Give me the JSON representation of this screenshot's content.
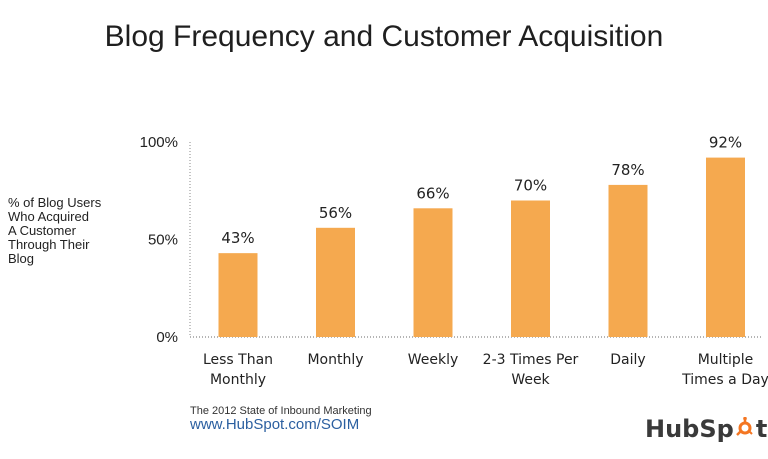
{
  "header": {
    "title": "Blog Frequency and Customer Acquisition"
  },
  "y_axis_label_lines": [
    "% of Blog Users",
    "Who Acquired",
    "A Customer",
    "Through Their",
    "Blog"
  ],
  "chart_data": {
    "type": "bar",
    "title": "Blog Frequency and Customer Acquisition",
    "ylabel": "% of Blog Users Who Acquired A Customer Through Their Blog",
    "xlabel": "",
    "ylim": [
      0,
      100
    ],
    "yticks": [
      0,
      50,
      100
    ],
    "ytick_labels": [
      "0%",
      "50%",
      "100%"
    ],
    "categories": [
      [
        "Less Than",
        "Monthly"
      ],
      [
        "Monthly"
      ],
      [
        "Weekly"
      ],
      [
        "2-3 Times Per",
        "Week"
      ],
      [
        "Daily"
      ],
      [
        "Multiple",
        "Times a Day"
      ]
    ],
    "values": [
      43,
      56,
      66,
      70,
      78,
      92
    ],
    "value_labels": [
      "43%",
      "56%",
      "66%",
      "70%",
      "78%",
      "92%"
    ],
    "bar_color": "#f5a94f",
    "grid": false
  },
  "source": {
    "line1": "The 2012 State of Inbound Marketing",
    "line2": "www.HubSpot.com/SOIM"
  },
  "logo": {
    "text_left": "HubSp",
    "text_right": "t"
  },
  "colors": {
    "bar": "#f5a94f",
    "axis": "#888888",
    "accent": "#f47622"
  }
}
